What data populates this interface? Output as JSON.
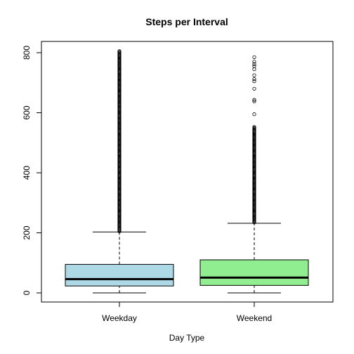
{
  "chart_data": {
    "type": "boxplot",
    "title": "Steps per Interval",
    "xlabel": "Day Type",
    "ylabel": "",
    "ylim": [
      -30,
      830
    ],
    "yticks": [
      0,
      200,
      400,
      600,
      800
    ],
    "grid": false,
    "categories": [
      "Weekday",
      "Weekend"
    ],
    "series": [
      {
        "category": "Weekday",
        "color": "#add8e6",
        "whisker_low": 0,
        "q1": 23,
        "median": 46,
        "q3": 95,
        "whisker_high": 203,
        "outlier_range": [
          205,
          806
        ],
        "isolated_outliers": [
          375
        ]
      },
      {
        "category": "Weekend",
        "color": "#90ee90",
        "whisker_low": 0,
        "q1": 25,
        "median": 51,
        "q3": 110,
        "whisker_high": 232,
        "outlier_range": [
          235,
          553
        ],
        "isolated_outliers": [
          595,
          638,
          643,
          680,
          705,
          712,
          725,
          745,
          755,
          762,
          770,
          785
        ]
      }
    ]
  }
}
